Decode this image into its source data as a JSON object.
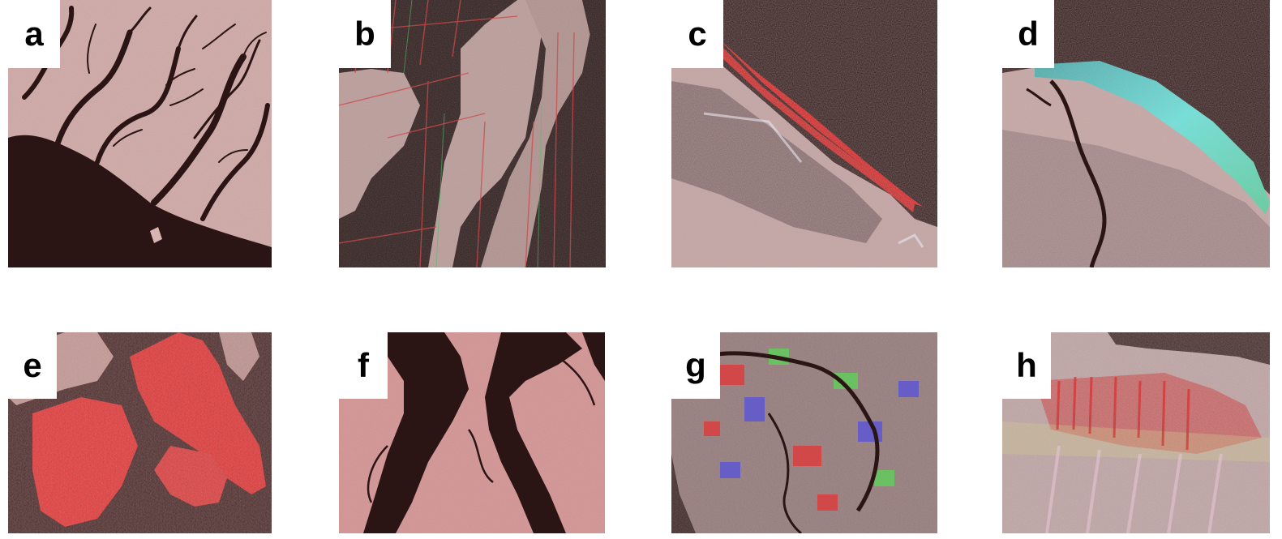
{
  "figure": {
    "panels": [
      {
        "label": "a"
      },
      {
        "label": "b"
      },
      {
        "label": "c"
      },
      {
        "label": "d"
      },
      {
        "label": "e"
      },
      {
        "label": "f"
      },
      {
        "label": "g"
      },
      {
        "label": "h"
      }
    ]
  },
  "colors": {
    "water": "#2a1514",
    "land_pink": "#c79a97",
    "land_dark": "#8e6f6c",
    "red": "#e01a1a",
    "cyan": "#4ee0d8",
    "green": "#5fd05a",
    "blue": "#5a55d8",
    "background": "#ffffff"
  }
}
